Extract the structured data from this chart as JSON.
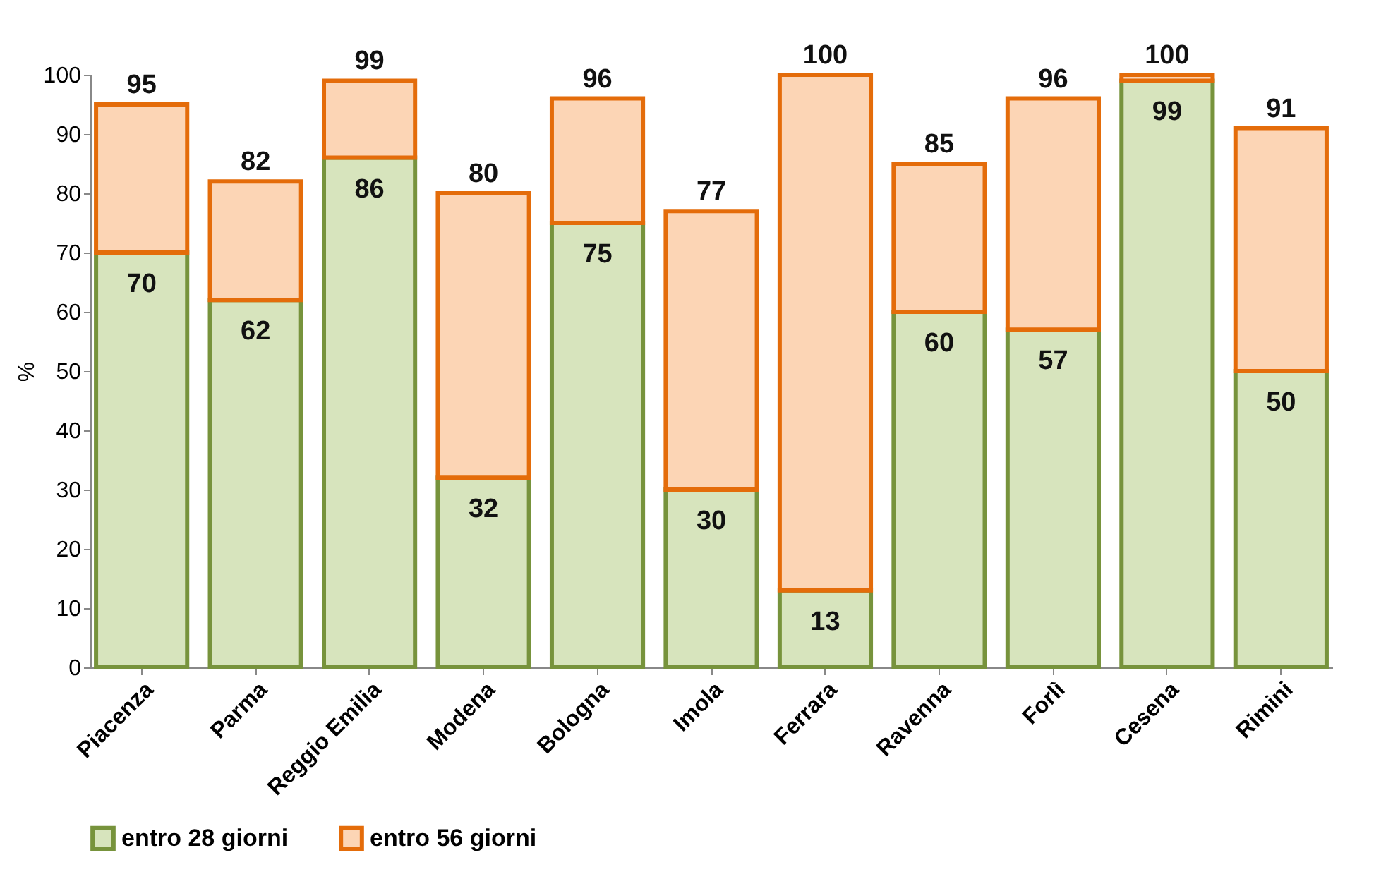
{
  "chart_data": {
    "type": "bar",
    "stacked": true,
    "ylabel": "%",
    "ylim": [
      0,
      100
    ],
    "yticks": [
      0,
      10,
      20,
      30,
      40,
      50,
      60,
      70,
      80,
      90,
      100
    ],
    "grid": false,
    "legend": "bottom",
    "categories": [
      "Piacenza",
      "Parma",
      "Reggio Emilia",
      "Modena",
      "Bologna",
      "Imola",
      "Ferrara",
      "Ravenna",
      "Forlì",
      "Cesena",
      "Rimini"
    ],
    "series": [
      {
        "name": "entro 28 giorni",
        "color": "#d7e4bd",
        "values": [
          70,
          62,
          86,
          32,
          75,
          30,
          13,
          60,
          57,
          99,
          50
        ],
        "value_labels": [
          "70",
          "62",
          "86",
          "32",
          "75",
          "30",
          "13",
          "60",
          "57",
          "99",
          "50"
        ]
      },
      {
        "name": "entro 56 giorni",
        "color": "#fcd5b5",
        "values": [
          25,
          20,
          13,
          48,
          21,
          47,
          87,
          25,
          39,
          1,
          41
        ]
      }
    ],
    "totals": [
      "95",
      "82",
      "99",
      "80",
      "96",
      "77",
      "100",
      "85",
      "96",
      "100",
      "91"
    ]
  }
}
